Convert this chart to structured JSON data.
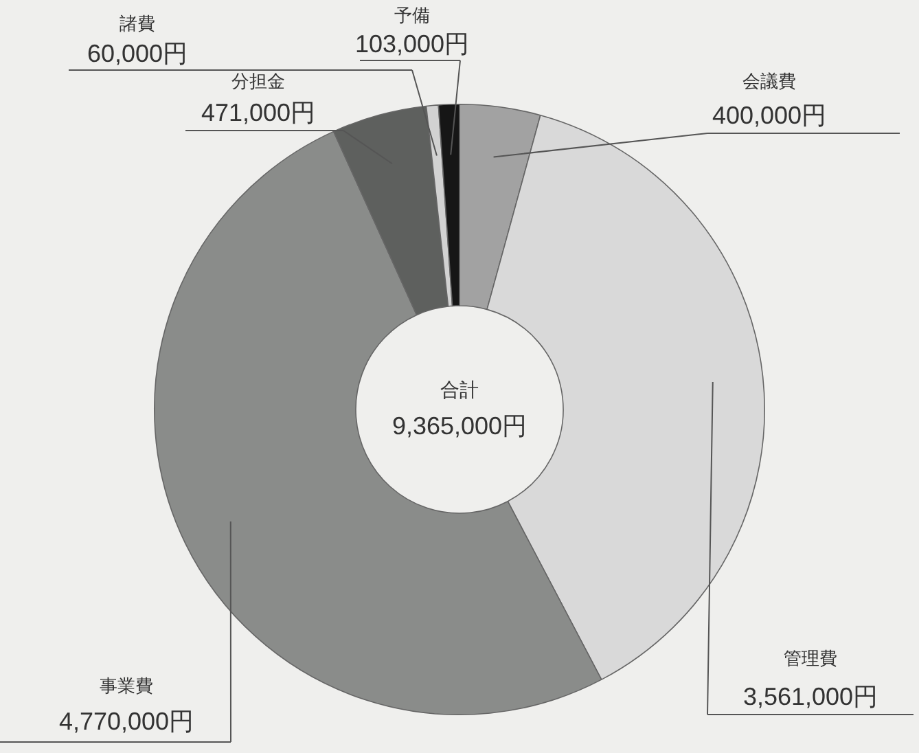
{
  "chart_data": {
    "type": "donut",
    "categories": [
      "会議費",
      "管理費",
      "事業費",
      "分担金",
      "諸費",
      "予備"
    ],
    "values": [
      400000,
      3561000,
      4770000,
      471000,
      60000,
      103000
    ],
    "colors": [
      "#a2a2a2",
      "#d9d9d9",
      "#8a8c8a",
      "#5e605e",
      "#d2d2d2",
      "#161616"
    ],
    "value_labels": [
      "400,000円",
      "3,561,000円",
      "4,770,000円",
      "471,000円",
      "60,000円",
      "103,000円"
    ],
    "annotations": [
      "合計",
      "9,365,000円"
    ],
    "legend": false
  }
}
